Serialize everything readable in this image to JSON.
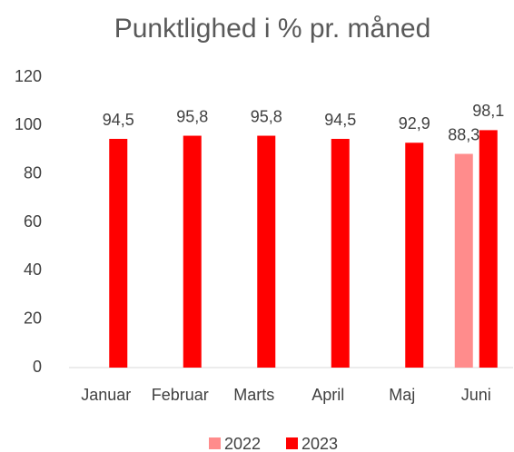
{
  "chart_data": {
    "type": "bar",
    "title": "Punktlighed i % pr. måned",
    "categories": [
      "Januar",
      "Februar",
      "Marts",
      "April",
      "Maj",
      "Juni"
    ],
    "series": [
      {
        "name": "2022",
        "color": "#ff8c8c",
        "values": [
          null,
          null,
          null,
          null,
          null,
          88.3
        ],
        "value_labels": [
          null,
          null,
          null,
          null,
          null,
          "88,3"
        ]
      },
      {
        "name": "2023",
        "color": "#ff0000",
        "values": [
          94.5,
          95.8,
          95.8,
          94.5,
          92.9,
          98.1
        ],
        "value_labels": [
          "94,5",
          "95,8",
          "95,8",
          "94,5",
          "92,9",
          "98,1"
        ]
      }
    ],
    "ylim": [
      0,
      120
    ],
    "yticks": [
      0,
      20,
      40,
      60,
      80,
      100,
      120
    ],
    "grid": false,
    "legend": "bottom"
  }
}
